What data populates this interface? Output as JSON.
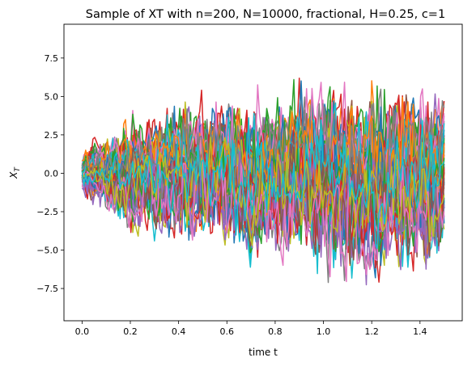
{
  "chart_data": {
    "type": "line",
    "title": "Sample of XT with n=200, N=10000, fractional, H=0.25, c=1",
    "xlabel": "time t",
    "ylabel": "X_T",
    "xlim": [
      -0.075,
      1.575
    ],
    "ylim": [
      -9.6,
      9.7
    ],
    "xticks": [
      0.0,
      0.2,
      0.4,
      0.6,
      0.8,
      1.0,
      1.2,
      1.4
    ],
    "xtick_labels": [
      "0.0",
      "0.2",
      "0.4",
      "0.6",
      "0.8",
      "1.0",
      "1.2",
      "1.4"
    ],
    "yticks": [
      -7.5,
      -5.0,
      -2.5,
      0.0,
      2.5,
      5.0,
      7.5
    ],
    "ytick_labels": [
      "−7.5",
      "−5.0",
      "−2.5",
      "0.0",
      "2.5",
      "5.0",
      "7.5"
    ],
    "grid": false,
    "legend": "none",
    "t_start": 0.0,
    "t_end": 1.5,
    "steps_per_path": 200,
    "drawn_paths": 60,
    "envelope": {
      "t": [
        0.0,
        0.1,
        0.2,
        0.4,
        0.6,
        0.8,
        1.0,
        1.2,
        1.4,
        1.5
      ],
      "upper": [
        1.9,
        3.3,
        4.2,
        5.4,
        5.9,
        6.5,
        7.0,
        7.3,
        7.2,
        7.0
      ],
      "lower": [
        -1.8,
        -3.2,
        -4.4,
        -5.3,
        -6.2,
        -6.9,
        -7.4,
        -8.5,
        -8.2,
        -7.6
      ]
    },
    "palette": [
      "#1f77b4",
      "#ff7f0e",
      "#2ca02c",
      "#d62728",
      "#9467bd",
      "#8c564b",
      "#e377c2",
      "#7f7f7f",
      "#bcbd22",
      "#17becf"
    ]
  }
}
